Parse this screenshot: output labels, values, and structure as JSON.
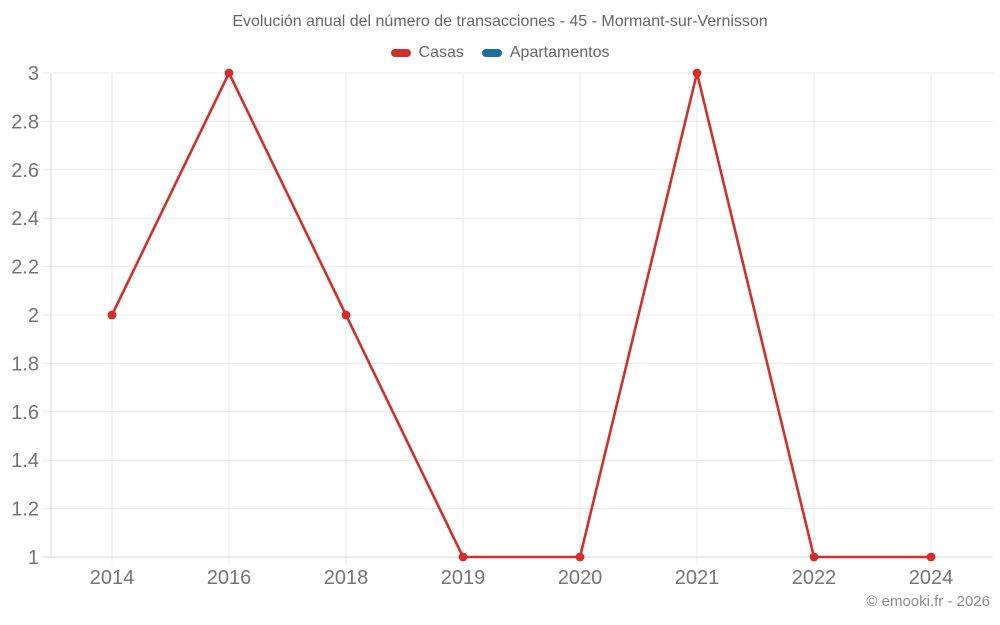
{
  "page": {
    "credit": "© emooki.fr - 2026"
  },
  "legend": {
    "items": [
      {
        "label": "Casas",
        "color": "#d32f2a"
      },
      {
        "label": "Apartamentos",
        "color": "#1b709e"
      }
    ]
  },
  "chart_data": {
    "type": "line",
    "title": "Evolución anual del número de transacciones - 45 - Mormant-sur-Vernisson",
    "categories": [
      "2014",
      "2016",
      "2018",
      "2019",
      "2020",
      "2021",
      "2022",
      "2024"
    ],
    "series": [
      {
        "name": "Casas",
        "color": "#d32f2a",
        "values": [
          2,
          3,
          2,
          1,
          1,
          3,
          1,
          1
        ]
      },
      {
        "name": "Apartamentos",
        "color": "#1b709e",
        "values": []
      }
    ],
    "xlabel": "",
    "ylabel": "",
    "ylim": [
      1,
      3
    ],
    "y_ticks": [
      1,
      1.2,
      1.4,
      1.6,
      1.8,
      2,
      2.2,
      2.4,
      2.6,
      2.8,
      3
    ],
    "y_tick_labels": [
      "1",
      "1.2",
      "1.4",
      "1.6",
      "1.8",
      "2",
      "2.2",
      "2.4",
      "2.6",
      "2.8",
      "3"
    ],
    "grid": true,
    "legend_position": "top",
    "marker": "circle",
    "colors": {
      "grid": "#e9e9e9",
      "axis": "#d9d9d9",
      "tick_text": "#757575",
      "title_text": "#666666",
      "credit_text": "#8c8c8c"
    }
  }
}
